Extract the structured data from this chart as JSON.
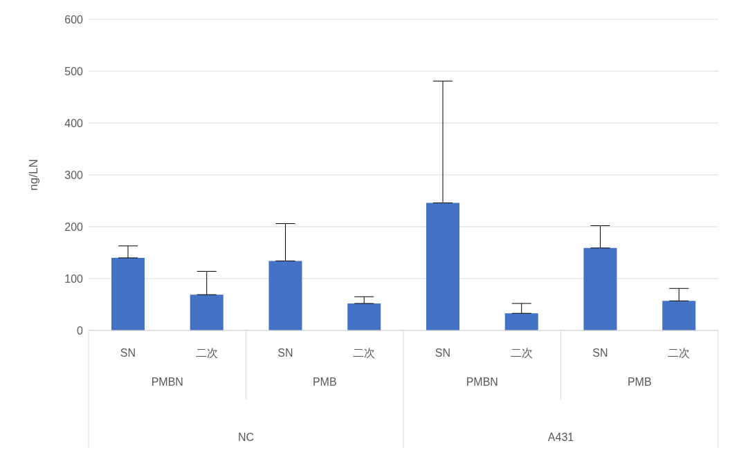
{
  "chart_data": {
    "type": "bar",
    "ylabel": "ng/LN",
    "categories": [
      "SN",
      "二次",
      "SN",
      "二次",
      "SN",
      "二次",
      "SN",
      "二次"
    ],
    "values": [
      140,
      69,
      134,
      52,
      246,
      33,
      159,
      57
    ],
    "errors": [
      [
        140,
        163
      ],
      [
        69,
        114
      ],
      [
        134,
        206
      ],
      [
        52,
        65
      ],
      [
        246,
        481
      ],
      [
        33,
        52
      ],
      [
        159,
        202
      ],
      [
        57,
        81
      ]
    ],
    "color": "#4472c4",
    "ylim": [
      0,
      600
    ],
    "yticks": [
      0,
      100,
      200,
      300,
      400,
      500,
      600
    ],
    "grid": "y",
    "annotations": [
      "PMBN",
      "PMB",
      "PMBN",
      "PMB",
      "NC",
      "A431"
    ]
  }
}
